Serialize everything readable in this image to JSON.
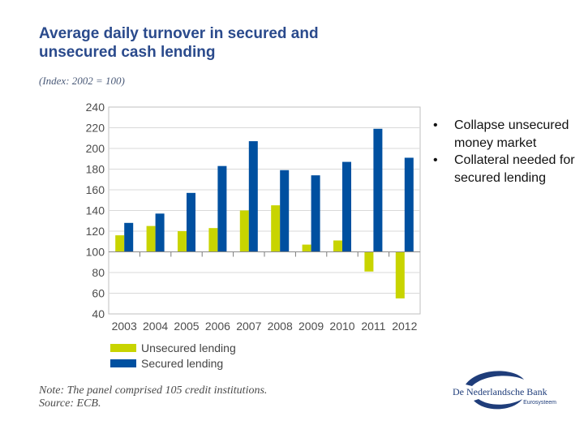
{
  "title": "Average daily turnover in secured and unsecured cash lending",
  "subtitle": "(Index: 2002 = 100)",
  "colors": {
    "unsecured": "#c8d400",
    "secured": "#0050a0",
    "title": "#2a4a8c"
  },
  "chart_data": {
    "type": "bar",
    "title": "Average daily turnover in secured and unsecured cash lending",
    "subtitle": "(Index: 2002 = 100)",
    "categories": [
      "2003",
      "2004",
      "2005",
      "2006",
      "2007",
      "2008",
      "2009",
      "2010",
      "2011",
      "2012"
    ],
    "series": [
      {
        "name": "Unsecured lending",
        "color": "#c8d400",
        "values": [
          116,
          125,
          120,
          123,
          140,
          145,
          107,
          111,
          81,
          55
        ]
      },
      {
        "name": "Secured lending",
        "color": "#0050a0",
        "values": [
          128,
          137,
          157,
          183,
          207,
          179,
          174,
          187,
          219,
          191
        ]
      }
    ],
    "baseline": 100,
    "ylim": [
      40,
      240
    ],
    "yticks": [
      40,
      60,
      80,
      100,
      120,
      140,
      160,
      180,
      200,
      220,
      240
    ],
    "grid": true,
    "xlabel": "",
    "ylabel": ""
  },
  "legend": [
    {
      "label": "Unsecured lending",
      "color": "#c8d400"
    },
    {
      "label": "Secured lending",
      "color": "#0050a0"
    }
  ],
  "note": "Note: The panel comprised 105 credit institutions.",
  "source": "Source: ECB.",
  "bullets": [
    "Collapse unsecured money market",
    "Collateral needed for secured lending"
  ],
  "logo": {
    "name": "De Nederlandsche Bank",
    "sub": "Eurosysteem"
  }
}
